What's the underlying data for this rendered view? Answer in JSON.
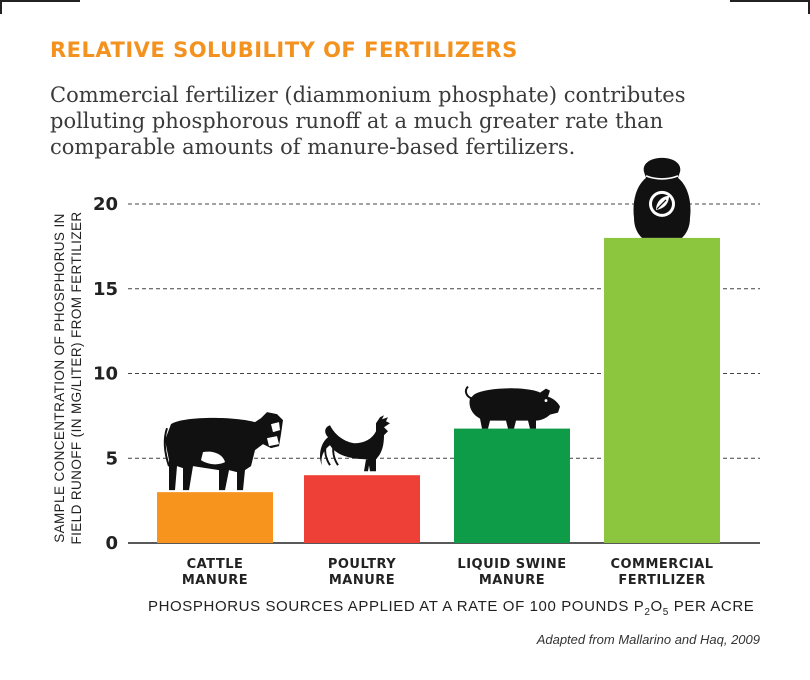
{
  "title": "RELATIVE SOLUBILITY OF FERTILIZERS",
  "subtitle": "Commercial fertilizer (diammonium phosphate) contributes polluting phosphorous runoff at a much greater rate than comparable amounts of manure-based fertilizers.",
  "source": "Adapted from Mallarino and Haq, 2009",
  "chart_data": {
    "type": "bar",
    "ylabel": "SAMPLE CONCENTRATION OF PHOSPHORUS IN FIELD RUNOFF (IN MG/LITER) FROM FERTILIZER",
    "xlabel_parts": [
      "PHOSPHORUS SOURCES APPLIED AT A RATE OF 100 POUNDS P",
      "2",
      "O",
      "5",
      " PER ACRE"
    ],
    "ylim": [
      0,
      20
    ],
    "yticks": [
      0,
      5,
      10,
      15,
      20
    ],
    "grid": true,
    "categories": [
      [
        "CATTLE",
        "MANURE"
      ],
      [
        "POULTRY",
        "MANURE"
      ],
      [
        "LIQUID SWINE",
        "MANURE"
      ],
      [
        "COMMERCIAL",
        "FERTILIZER"
      ]
    ],
    "values": [
      3,
      4,
      6.75,
      18
    ],
    "colors": [
      "#f7941d",
      "#ee4036",
      "#0e9c48",
      "#8cc63f"
    ],
    "icons": [
      "cow-icon",
      "rooster-icon",
      "pig-icon",
      "fertilizer-bag-icon"
    ]
  }
}
